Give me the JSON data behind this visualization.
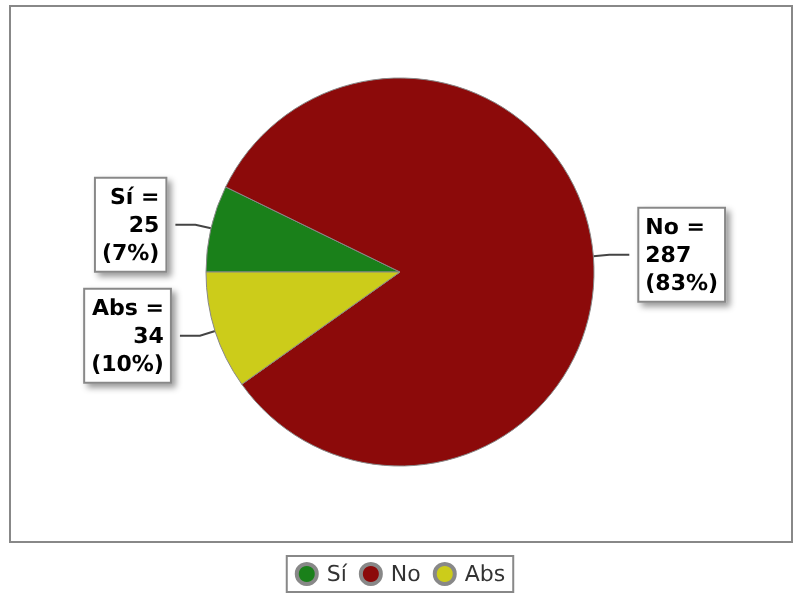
{
  "chart_data": {
    "type": "pie",
    "categories": [
      "Sí",
      "No",
      "Abs"
    ],
    "values": [
      25,
      287,
      34
    ],
    "colors": [
      "#1a801a",
      "#8c0a0a",
      "#cccc1a"
    ],
    "value_labels": [
      "Sí =\n25\n(7%)",
      "No =\n287\n(83%)",
      "Abs =\n34\n(10%)"
    ],
    "legend": "bottom"
  }
}
